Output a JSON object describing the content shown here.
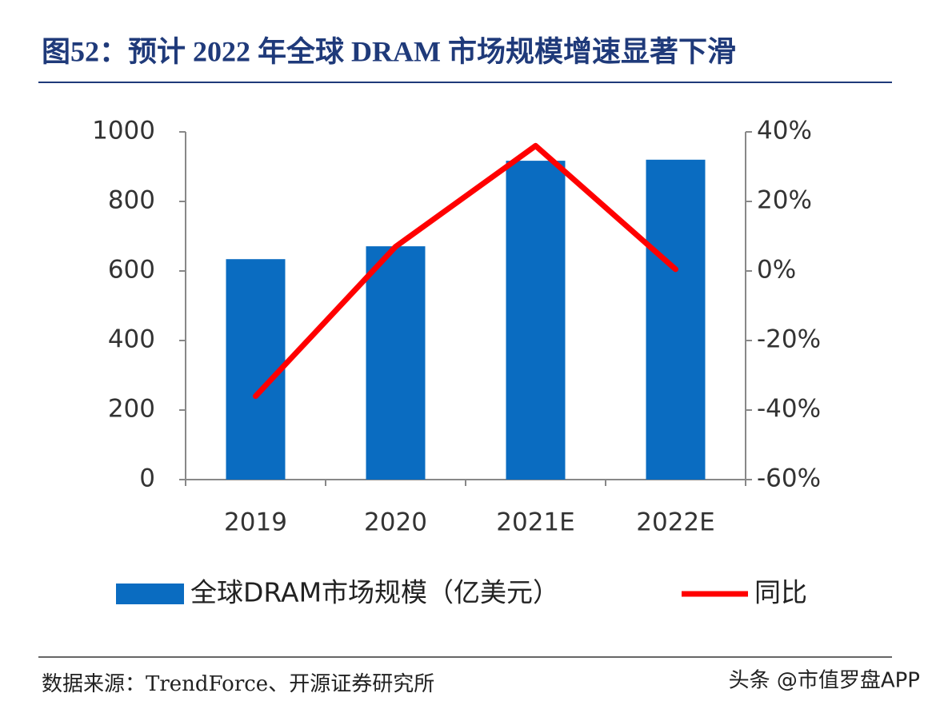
{
  "chart_data": {
    "type": "bar-line",
    "title": "图52：预计 2022 年全球 DRAM 市场规模增速显著下滑",
    "source": "数据来源：TrendForce、开源证券研究所",
    "watermark": "头条 @市值罗盘APP",
    "categories": [
      "2019",
      "2020",
      "2021E",
      "2022E"
    ],
    "series": [
      {
        "name": "全球DRAM市场规模（亿美元）",
        "color": "#0a6cc1",
        "values": [
          634,
          671,
          917,
          920
        ]
      },
      {
        "name": "同比",
        "color": "#ff0000",
        "axis": "y2",
        "values": [
          -36,
          7,
          36,
          0.5
        ]
      }
    ],
    "ylim": [
      0,
      1000
    ],
    "yticks": [
      0,
      200,
      400,
      600,
      800,
      1000
    ],
    "y2lim": [
      -60,
      40
    ],
    "y2ticks": [
      {
        "value": -60,
        "label": "-60%"
      },
      {
        "value": -40,
        "label": "-40%"
      },
      {
        "value": -20,
        "label": "-20%"
      },
      {
        "value": 0,
        "label": "0%"
      },
      {
        "value": 20,
        "label": "20%"
      },
      {
        "value": 40,
        "label": "40%"
      }
    ],
    "legend": "bottom"
  }
}
